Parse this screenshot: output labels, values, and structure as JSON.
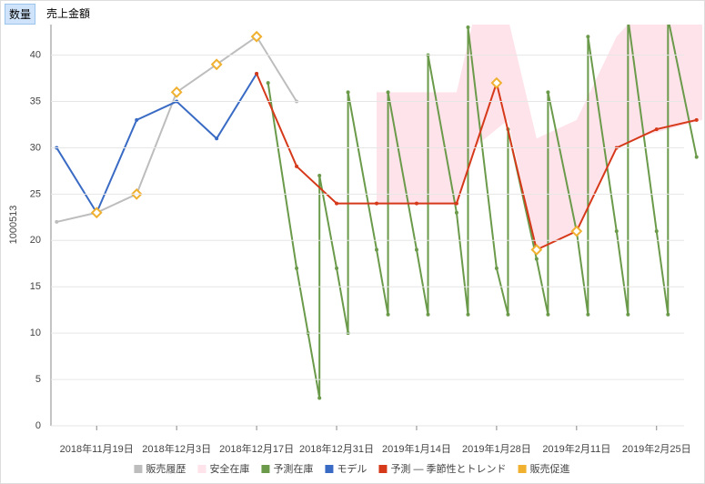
{
  "tabs": [
    "数量",
    "売上金額"
  ],
  "chart_data": {
    "type": "line",
    "y_label": "1000513",
    "xlim": [
      "2018年11月11日",
      "2019年3月5日"
    ],
    "xticks": [
      "2018年11月19日",
      "2018年12月3日",
      "2018年12月17日",
      "2018年12月31日",
      "2019年1月14日",
      "2019年1月28日",
      "2019年2月11日",
      "2019年2月25日"
    ],
    "ylim": [
      0,
      43.3
    ],
    "yticks": [
      0,
      5,
      10,
      15,
      20,
      25,
      30,
      35,
      40
    ],
    "grid": true,
    "series": [
      {
        "name": "販売履歴",
        "type": "line",
        "color": "#bdbdbd",
        "x": [
          "2018年11月12日",
          "2018年11月19日",
          "2018年11月26日",
          "2018年12月3日",
          "2018年12月10日",
          "2018年12月17日",
          "2018年12月24日"
        ],
        "values": [
          22,
          23,
          25,
          36,
          39,
          42,
          35
        ]
      },
      {
        "name": "安全在庫",
        "type": "area",
        "color": "#ffe3ea",
        "x": [
          "2019年1月7日",
          "2019年1月21日",
          "2019年1月24日",
          "2019年1月30日",
          "2019年2月4日",
          "2019年2月11日",
          "2019年2月18日",
          "2019年2月21日",
          "2019年3月5日"
        ],
        "values": [
          36,
          36,
          44,
          44,
          31,
          33,
          42,
          44,
          44
        ],
        "low": [
          24,
          24,
          30,
          33,
          19,
          21,
          30,
          31,
          33
        ]
      },
      {
        "name": "予測在庫",
        "type": "line",
        "color": "#6a9a4a",
        "x": [
          "2018年12月19日",
          "2018年12月24日",
          "2018年12月26日",
          "2018年12月28日",
          "2018年12月28日",
          "2018年12月31日",
          "2019年1月2日",
          "2019年1月2日",
          "2019年1月7日",
          "2019年1月9日",
          "2019年1月9日",
          "2019年1月14日",
          "2019年1月16日",
          "2019年1月16日",
          "2019年1月21日",
          "2019年1月23日",
          "2019年1月23日",
          "2019年1月28日",
          "2019年1月30日",
          "2019年1月30日",
          "2019年2月4日",
          "2019年2月6日",
          "2019年2月6日",
          "2019年2月11日",
          "2019年2月13日",
          "2019年2月13日",
          "2019年2月18日",
          "2019年2月20日",
          "2019年2月20日",
          "2019年2月25日",
          "2019年2月27日",
          "2019年2月27日",
          "2019年3月4日"
        ],
        "values": [
          37,
          17,
          10,
          3,
          27,
          17,
          10,
          36,
          19,
          12,
          36,
          19,
          12,
          40,
          23,
          12,
          43,
          17,
          12,
          32,
          18,
          12,
          36,
          21,
          12,
          42,
          21,
          12,
          44,
          21,
          12,
          44,
          29
        ]
      },
      {
        "name": "モデル",
        "type": "line",
        "color": "#3a6bc4",
        "x": [
          "2018年11月12日",
          "2018年11月19日",
          "2018年11月26日",
          "2018年12月3日",
          "2018年12月10日",
          "2018年12月17日"
        ],
        "values": [
          30,
          23,
          33,
          35,
          31,
          38
        ]
      },
      {
        "name": "予測 — 季節性とトレンド",
        "type": "line",
        "color": "#d6391a",
        "x": [
          "2018年12月17日",
          "2018年12月24日",
          "2018年12月31日",
          "2019年1月7日",
          "2019年1月14日",
          "2019年1月21日",
          "2019年1月28日",
          "2019年2月4日",
          "2019年2月11日",
          "2019年2月18日",
          "2019年2月25日",
          "2019年3月4日"
        ],
        "values": [
          38,
          28,
          24,
          24,
          24,
          24,
          37,
          19,
          21,
          30,
          32,
          33
        ]
      },
      {
        "name": "販売促進",
        "type": "scatter",
        "color": "#f0b030",
        "x": [
          "2018年11月19日",
          "2018年11月26日",
          "2018年12月3日",
          "2018年12月10日",
          "2018年12月17日",
          "2019年1月28日",
          "2019年2月4日",
          "2019年2月11日"
        ],
        "values": [
          23,
          25,
          36,
          39,
          42,
          37,
          19,
          21
        ]
      }
    ]
  }
}
